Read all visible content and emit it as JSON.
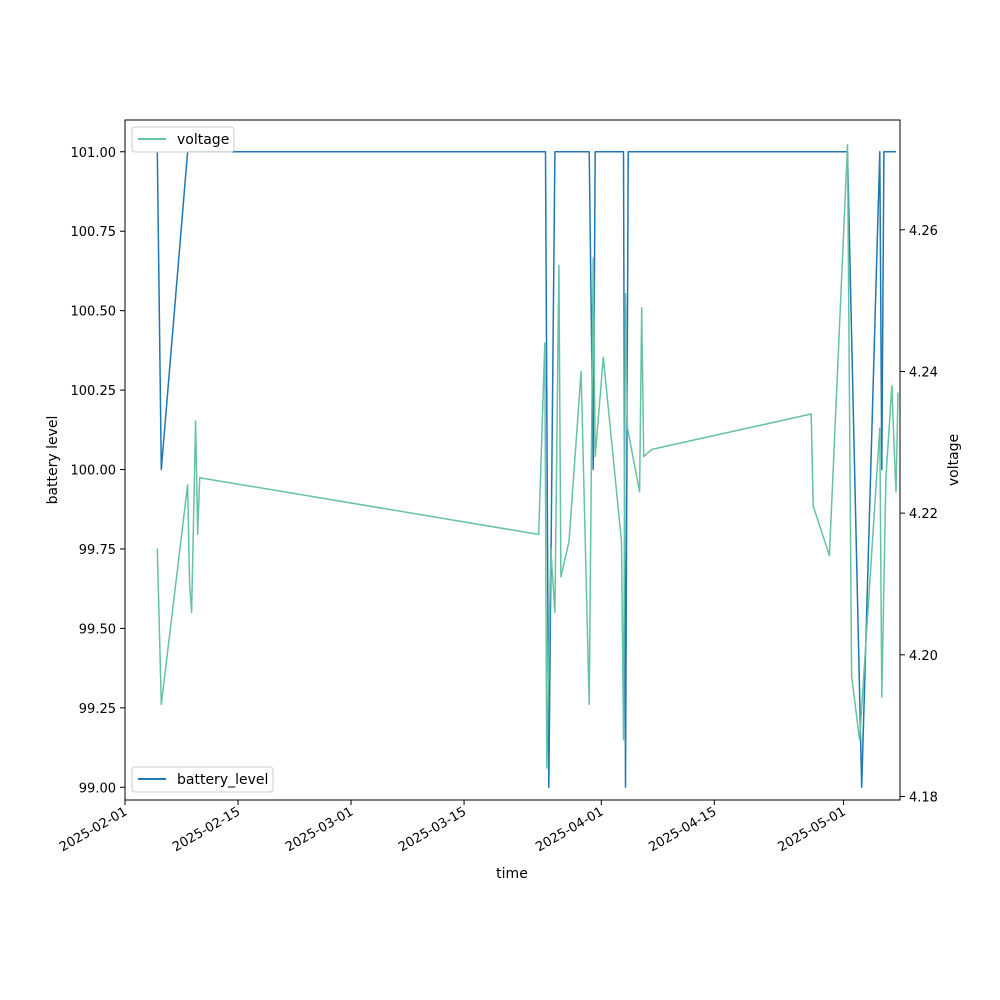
{
  "chart_data": {
    "type": "line",
    "xlabel": "time",
    "ylabel": "battery level",
    "y2label": "voltage",
    "xlim": [
      "2025-02-01",
      "2025-05-08"
    ],
    "ylim": [
      98.96,
      101.1
    ],
    "y2lim": [
      4.1795,
      4.2755
    ],
    "x_ticks": [
      "2025-02-01",
      "2025-02-15",
      "2025-03-01",
      "2025-03-15",
      "2025-04-01",
      "2025-04-15",
      "2025-05-01"
    ],
    "y_ticks": [
      "99.00",
      "99.25",
      "99.50",
      "99.75",
      "100.00",
      "100.25",
      "100.50",
      "100.75",
      "101.00"
    ],
    "y2_ticks": [
      "4.18",
      "4.20",
      "4.22",
      "4.24",
      "4.26"
    ],
    "grid": false,
    "series": [
      {
        "name": "battery_level",
        "axis": "left",
        "color": "#1f77b4",
        "legend_position": "lower-left",
        "points": [
          [
            "2025-02-05",
            101.0
          ],
          [
            "2025-02-05 12:00",
            100.0
          ],
          [
            "2025-02-08 18:00",
            101.0
          ],
          [
            "2025-03-25 02:00",
            101.0
          ],
          [
            "2025-03-25 12:00",
            99.0
          ],
          [
            "2025-03-26 06:00",
            101.0
          ],
          [
            "2025-03-30 12:00",
            101.0
          ],
          [
            "2025-03-31 00:00",
            100.0
          ],
          [
            "2025-03-31 06:00",
            101.0
          ],
          [
            "2025-04-03 18:00",
            101.0
          ],
          [
            "2025-04-04 00:00",
            99.0
          ],
          [
            "2025-04-04 08:00",
            101.0
          ],
          [
            "2025-05-01 12:00",
            101.0
          ],
          [
            "2025-05-03 06:00",
            99.0
          ],
          [
            "2025-05-05 12:00",
            101.0
          ],
          [
            "2025-05-05 18:00",
            100.0
          ],
          [
            "2025-05-06 00:00",
            101.0
          ],
          [
            "2025-05-07 12:00",
            101.0
          ]
        ]
      },
      {
        "name": "voltage",
        "axis": "right",
        "color": "#66c2a5",
        "legend_position": "upper-left",
        "points": [
          [
            "2025-02-05 00:00",
            4.215
          ],
          [
            "2025-02-05 12:00",
            4.193
          ],
          [
            "2025-02-08 18:00",
            4.224
          ],
          [
            "2025-02-09 00:00",
            4.21
          ],
          [
            "2025-02-09 06:00",
            4.206
          ],
          [
            "2025-02-09 18:00",
            4.233
          ],
          [
            "2025-02-10 00:00",
            4.217
          ],
          [
            "2025-02-10 06:00",
            4.225
          ],
          [
            "2025-03-24 06:00",
            4.217
          ],
          [
            "2025-03-25 00:00",
            4.244
          ],
          [
            "2025-03-25 06:00",
            4.184
          ],
          [
            "2025-03-25 18:00",
            4.215
          ],
          [
            "2025-03-26 06:00",
            4.206
          ],
          [
            "2025-03-26 18:00",
            4.255
          ],
          [
            "2025-03-27 00:00",
            4.211
          ],
          [
            "2025-03-28 00:00",
            4.216
          ],
          [
            "2025-03-29 12:00",
            4.24
          ],
          [
            "2025-03-30 12:00",
            4.193
          ],
          [
            "2025-03-31 00:00",
            4.256
          ],
          [
            "2025-03-31 06:00",
            4.228
          ],
          [
            "2025-04-01 06:00",
            4.242
          ],
          [
            "2025-04-03 12:00",
            4.216
          ],
          [
            "2025-04-03 18:00",
            4.188
          ],
          [
            "2025-04-04 00:00",
            4.251
          ],
          [
            "2025-04-04 06:00",
            4.232
          ],
          [
            "2025-04-05 18:00",
            4.223
          ],
          [
            "2025-04-06 00:00",
            4.249
          ],
          [
            "2025-04-06 06:00",
            4.228
          ],
          [
            "2025-04-07 06:00",
            4.229
          ],
          [
            "2025-04-27 00:00",
            4.234
          ],
          [
            "2025-04-27 06:00",
            4.221
          ],
          [
            "2025-04-29 06:00",
            4.214
          ],
          [
            "2025-05-01 12:00",
            4.272
          ],
          [
            "2025-05-02 00:00",
            4.197
          ],
          [
            "2025-05-03 00:00",
            4.188
          ],
          [
            "2025-05-05 12:00",
            4.232
          ],
          [
            "2025-05-05 18:00",
            4.194
          ],
          [
            "2025-05-06 06:00",
            4.225
          ],
          [
            "2025-05-07 00:00",
            4.238
          ],
          [
            "2025-05-07 06:00",
            4.23
          ],
          [
            "2025-05-07 12:00",
            4.223
          ],
          [
            "2025-05-07 18:00",
            4.237
          ]
        ]
      }
    ]
  }
}
